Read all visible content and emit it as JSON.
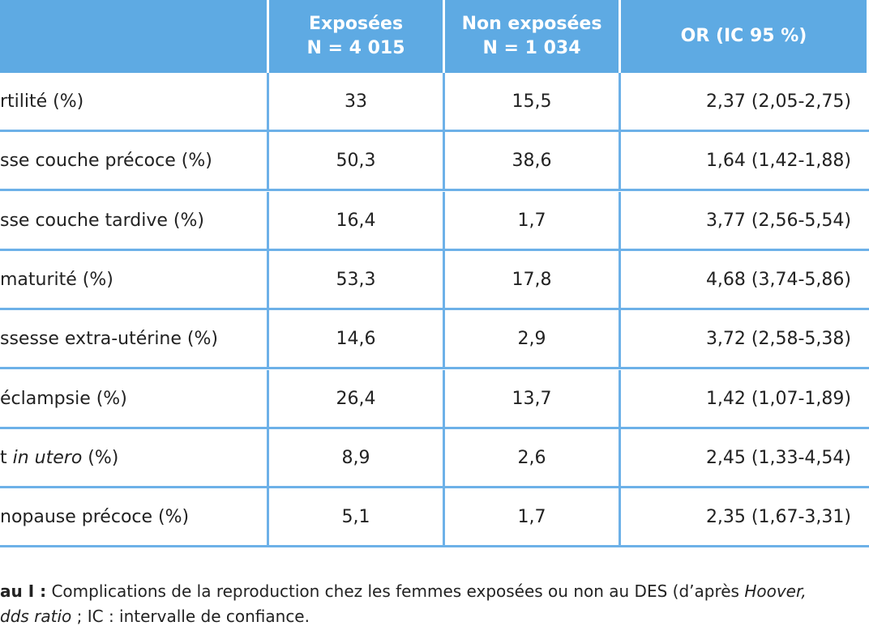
{
  "table": {
    "header": [
      [
        "Exposées",
        "N = 4 015"
      ],
      [
        "Non exposées",
        "N = 1 034"
      ],
      [
        "OR (IC 95 %)"
      ]
    ],
    "rows": [
      {
        "label": [
          {
            "text": "rtilité (%)"
          }
        ],
        "cells": [
          "33",
          "15,5",
          "2,37 (2,05-2,75)"
        ]
      },
      {
        "label": [
          {
            "text": "sse couche précoce (%)"
          }
        ],
        "cells": [
          "50,3",
          "38,6",
          "1,64 (1,42-1,88)"
        ]
      },
      {
        "label": [
          {
            "text": "sse couche tardive (%)"
          }
        ],
        "cells": [
          "16,4",
          "1,7",
          "3,77 (2,56-5,54)"
        ]
      },
      {
        "label": [
          {
            "text": "maturité (%)"
          }
        ],
        "cells": [
          "53,3",
          "17,8",
          "4,68 (3,74-5,86)"
        ]
      },
      {
        "label": [
          {
            "text": "ssesse extra-utérine (%)"
          }
        ],
        "cells": [
          "14,6",
          "2,9",
          "3,72 (2,58-5,38)"
        ]
      },
      {
        "label": [
          {
            "text": "éclampsie (%)"
          }
        ],
        "cells": [
          "26,4",
          "13,7",
          "1,42 (1,07-1,89)"
        ]
      },
      {
        "label": [
          {
            "text": "t "
          },
          {
            "text": "in utero",
            "italic": true
          },
          {
            "text": " (%)"
          }
        ],
        "cells": [
          "8,9",
          "2,6",
          "2,45 (1,33-4,54)"
        ]
      },
      {
        "label": [
          {
            "text": "nopause précoce (%)"
          }
        ],
        "cells": [
          "5,1",
          "1,7",
          "2,35 (1,67-3,31)"
        ]
      }
    ]
  },
  "caption": [
    [
      {
        "text": "au I :",
        "bold": true
      },
      {
        "text": " Complications de la reproduction chez les femmes exposées ou non au DES (d’après "
      },
      {
        "text": "Hoover,",
        "italic": true
      }
    ],
    [
      {
        "text": "dds ratio",
        "italic": true
      },
      {
        "text": " ; IC : intervalle de confiance."
      }
    ]
  ]
}
